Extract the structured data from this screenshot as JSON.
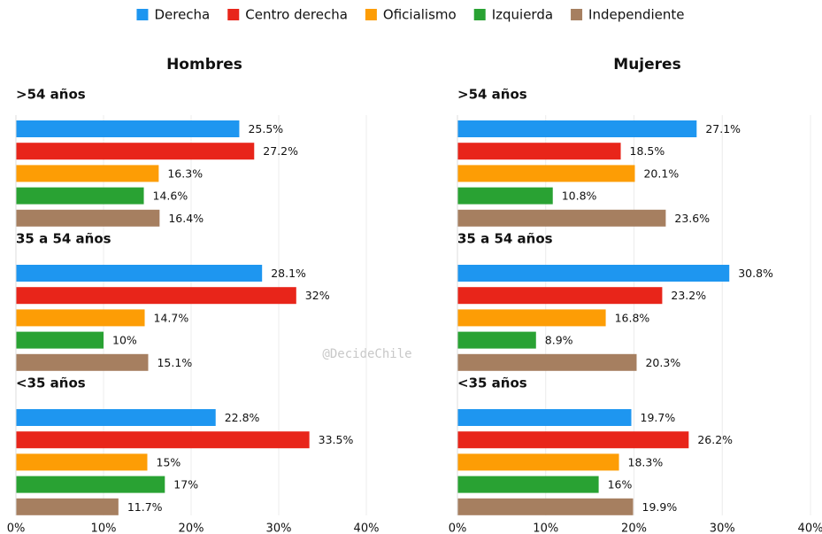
{
  "legend": {
    "series": [
      {
        "name": "Derecha",
        "color": "#1e96f0"
      },
      {
        "name": "Centro derecha",
        "color": "#e8251a"
      },
      {
        "name": "Oficialismo",
        "color": "#fd9d05"
      },
      {
        "name": "Izquierda",
        "color": "#29a233"
      },
      {
        "name": "Independiente",
        "color": "#a67f60"
      }
    ]
  },
  "watermark": "@DecideChile",
  "chart_data": [
    {
      "type": "bar",
      "orientation": "horizontal",
      "title": "Hombres",
      "xlim": [
        0,
        40
      ],
      "xticks": [
        {
          "value": 0,
          "label": "0%"
        },
        {
          "value": 10,
          "label": "10%"
        },
        {
          "value": 20,
          "label": "20%"
        },
        {
          "value": 30,
          "label": "30%"
        },
        {
          "value": 40,
          "label": "40%"
        }
      ],
      "grid": true,
      "panels": [
        {
          "subtitle": ">54 años",
          "values": [
            25.5,
            27.2,
            16.3,
            14.6,
            16.4
          ],
          "value_labels": [
            "25.5%",
            "27.2%",
            "16.3%",
            "14.6%",
            "16.4%"
          ]
        },
        {
          "subtitle": "35 a 54 años",
          "values": [
            28.1,
            32,
            14.7,
            10,
            15.1
          ],
          "value_labels": [
            "28.1%",
            "32%",
            "14.7%",
            "10%",
            "15.1%"
          ]
        },
        {
          "subtitle": "<35 años",
          "values": [
            22.8,
            33.5,
            15,
            17,
            11.7
          ],
          "value_labels": [
            "22.8%",
            "33.5%",
            "15%",
            "17%",
            "11.7%"
          ]
        }
      ]
    },
    {
      "type": "bar",
      "orientation": "horizontal",
      "title": "Mujeres",
      "xlim": [
        0,
        40
      ],
      "xticks": [
        {
          "value": 0,
          "label": "0%"
        },
        {
          "value": 10,
          "label": "10%"
        },
        {
          "value": 20,
          "label": "20%"
        },
        {
          "value": 30,
          "label": "30%"
        },
        {
          "value": 40,
          "label": "40%"
        }
      ],
      "grid": true,
      "panels": [
        {
          "subtitle": ">54 años",
          "values": [
            27.1,
            18.5,
            20.1,
            10.8,
            23.6
          ],
          "value_labels": [
            "27.1%",
            "18.5%",
            "20.1%",
            "10.8%",
            "23.6%"
          ]
        },
        {
          "subtitle": "35 a 54 años",
          "values": [
            30.8,
            23.2,
            16.8,
            8.9,
            20.3
          ],
          "value_labels": [
            "30.8%",
            "23.2%",
            "16.8%",
            "8.9%",
            "20.3%"
          ]
        },
        {
          "subtitle": "<35 años",
          "values": [
            19.7,
            26.2,
            18.3,
            16,
            19.9
          ],
          "value_labels": [
            "19.7%",
            "26.2%",
            "18.3%",
            "16%",
            "19.9%"
          ]
        }
      ]
    }
  ]
}
